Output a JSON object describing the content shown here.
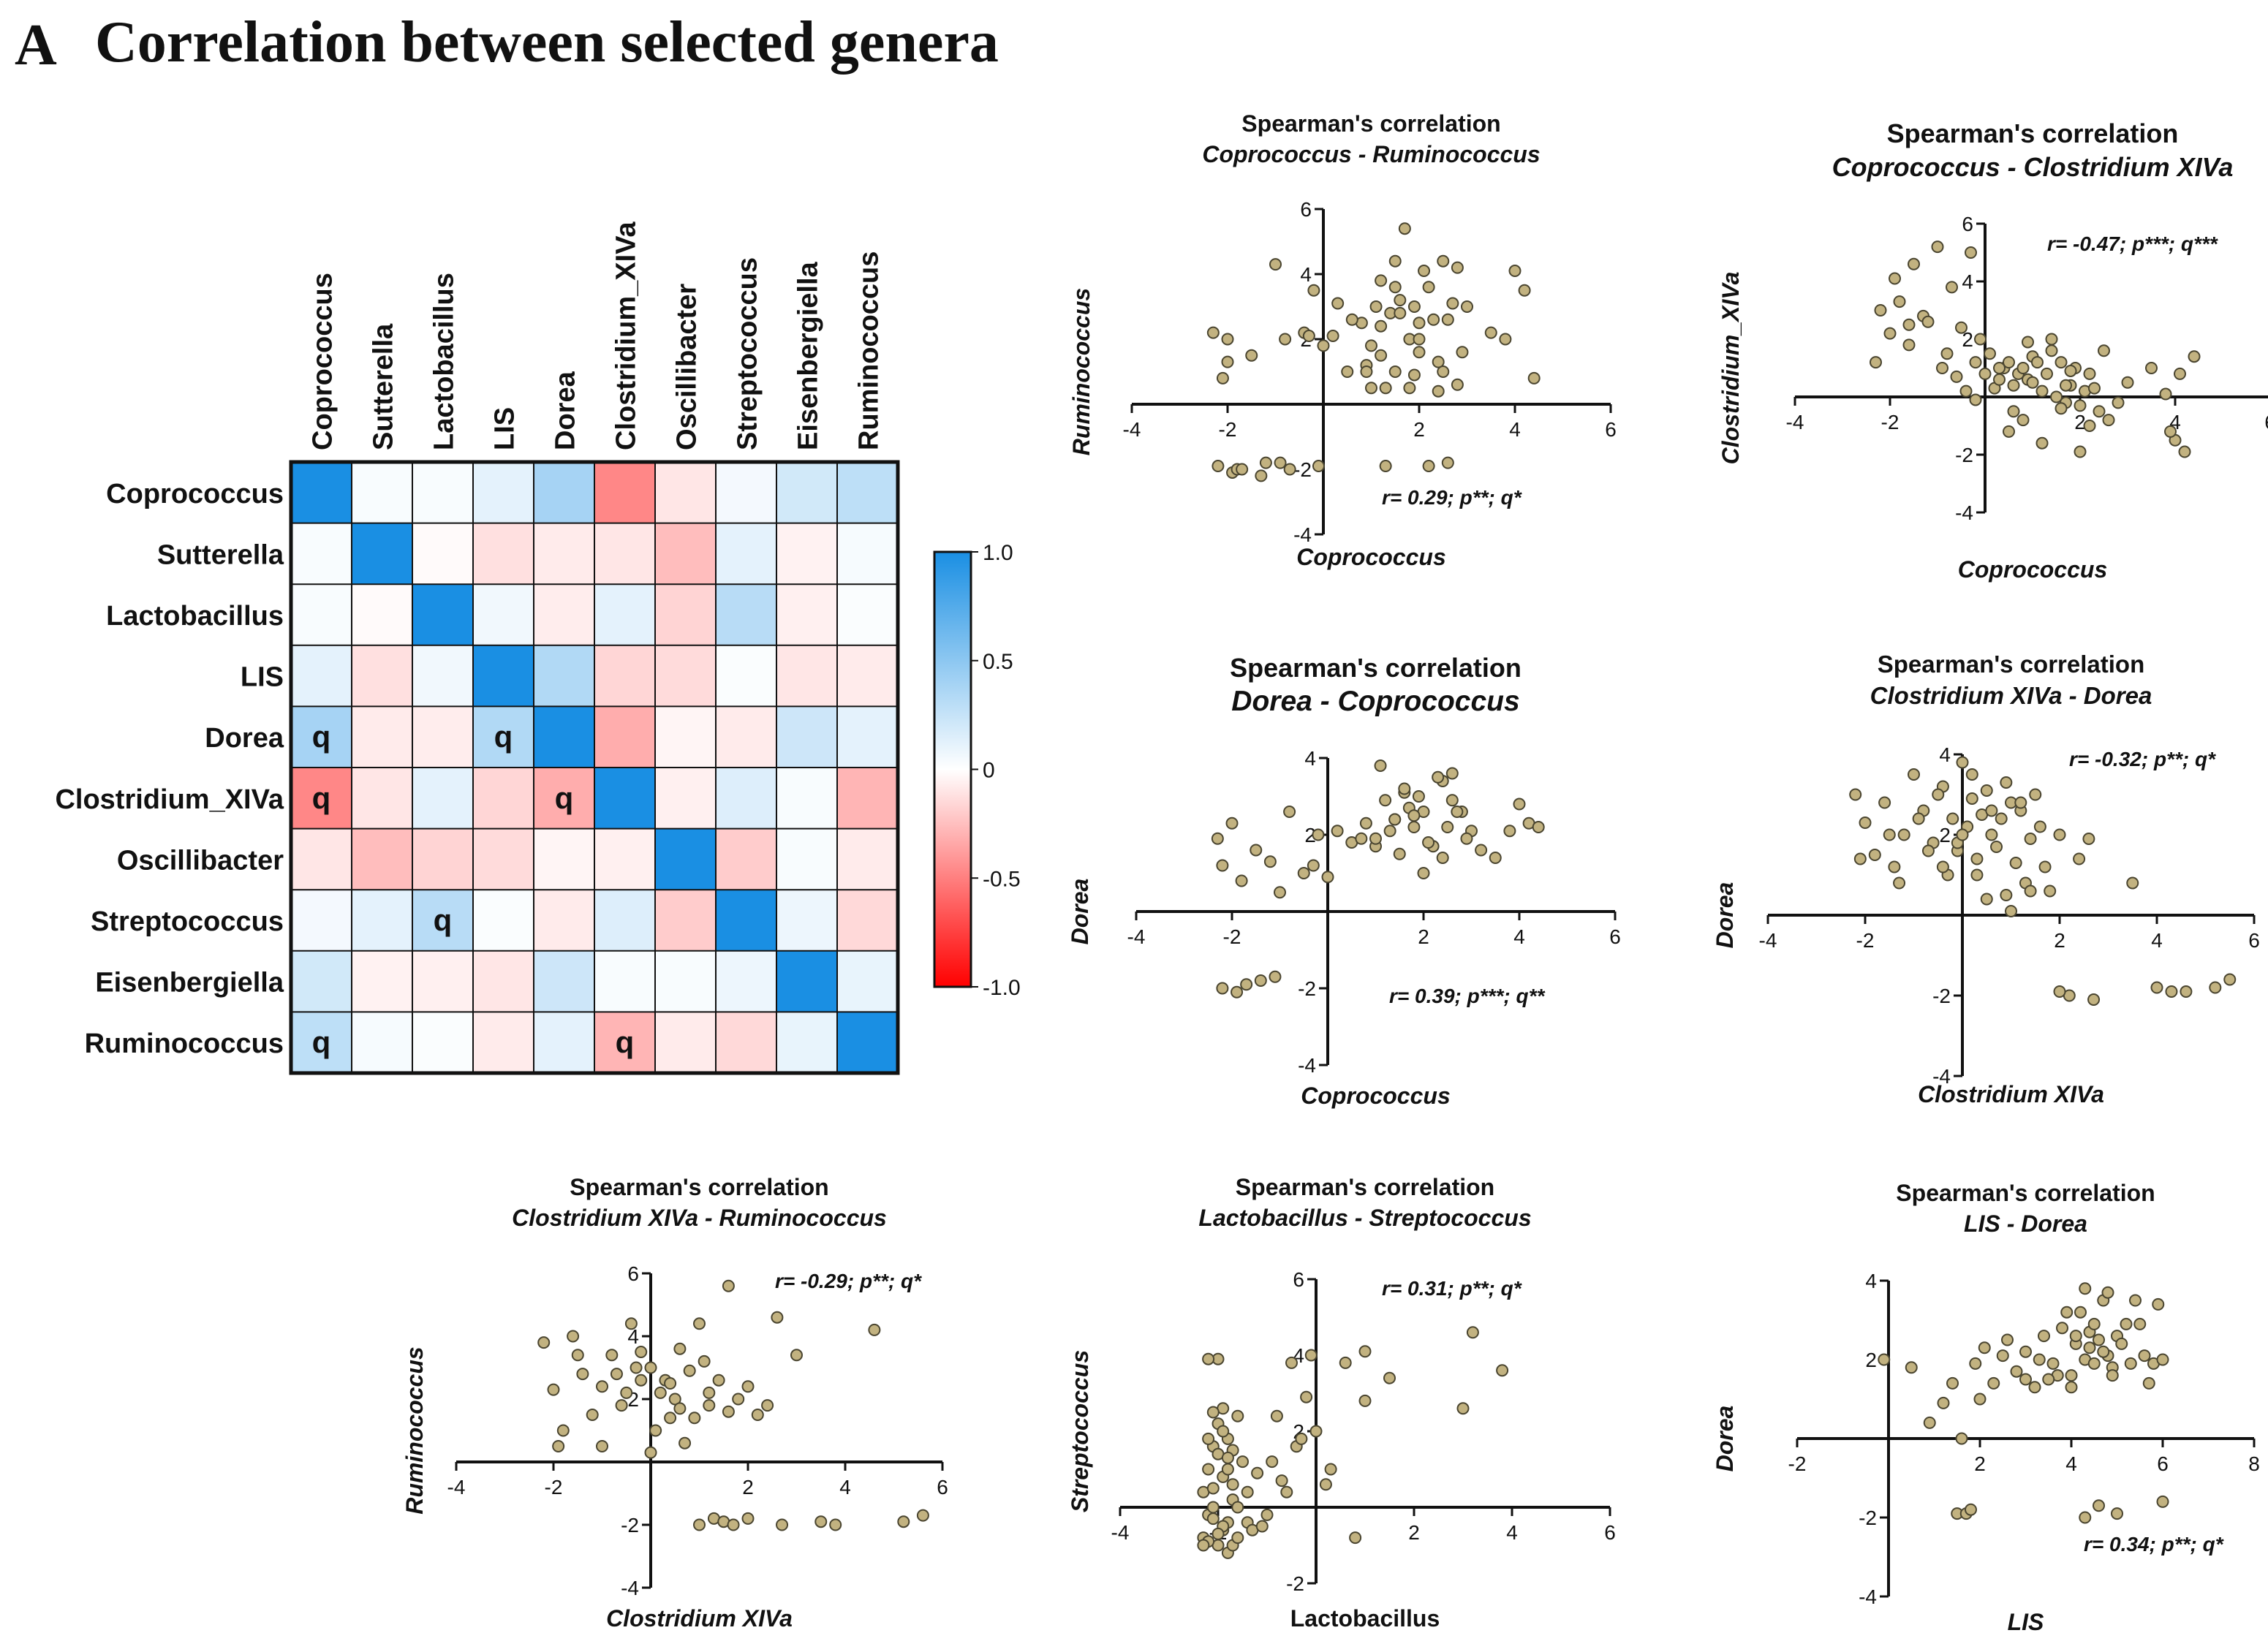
{
  "panel_label": "A",
  "panel_title": "Correlation between selected genera",
  "chart_data": [
    {
      "type": "heatmap",
      "title": "Correlation between selected genera",
      "rows": [
        "Coprococcus",
        "Sutterella",
        "Lactobacillus",
        "LIS",
        "Dorea",
        "Clostridium_XIVa",
        "Oscillibacter",
        "Streptococcus",
        "Eisenbergiella",
        "Ruminococcus"
      ],
      "columns": [
        "Coprococcus",
        "Sutterella",
        "Lactobacillus",
        "LIS",
        "Dorea",
        "Clostridium_XIVa",
        "Oscillibacter",
        "Streptococcus",
        "Eisenbergiella",
        "Ruminococcus"
      ],
      "values": [
        [
          1.0,
          0.03,
          0.03,
          0.12,
          0.39,
          -0.47,
          -0.1,
          0.05,
          0.2,
          0.29
        ],
        [
          0.03,
          1.0,
          -0.02,
          -0.12,
          -0.08,
          -0.1,
          -0.26,
          0.12,
          -0.05,
          0.04
        ],
        [
          0.03,
          -0.02,
          1.0,
          0.06,
          -0.07,
          0.12,
          -0.17,
          0.31,
          -0.06,
          0.02
        ],
        [
          0.12,
          -0.12,
          0.06,
          1.0,
          0.34,
          -0.16,
          -0.14,
          0.02,
          -0.1,
          -0.08
        ],
        [
          0.39,
          -0.08,
          -0.07,
          0.34,
          1.0,
          -0.32,
          -0.04,
          -0.08,
          0.22,
          0.12
        ],
        [
          -0.47,
          -0.1,
          0.12,
          -0.16,
          -0.32,
          1.0,
          -0.06,
          0.15,
          0.03,
          -0.29
        ],
        [
          -0.1,
          -0.26,
          -0.17,
          -0.14,
          -0.04,
          -0.06,
          1.0,
          -0.2,
          0.03,
          -0.08
        ],
        [
          0.05,
          0.12,
          0.31,
          0.02,
          -0.08,
          0.15,
          -0.2,
          1.0,
          0.08,
          -0.15
        ],
        [
          0.2,
          -0.05,
          -0.06,
          -0.1,
          0.22,
          0.03,
          0.03,
          0.08,
          1.0,
          0.1
        ],
        [
          0.29,
          0.04,
          0.02,
          -0.08,
          0.12,
          -0.29,
          -0.08,
          -0.15,
          0.1,
          1.0
        ]
      ],
      "markers": [
        {
          "row": 4,
          "col": 0,
          "text": "q"
        },
        {
          "row": 4,
          "col": 3,
          "text": "q"
        },
        {
          "row": 5,
          "col": 0,
          "text": "q"
        },
        {
          "row": 5,
          "col": 4,
          "text": "q"
        },
        {
          "row": 7,
          "col": 2,
          "text": "q"
        },
        {
          "row": 9,
          "col": 0,
          "text": "q"
        },
        {
          "row": 9,
          "col": 5,
          "text": "q"
        }
      ],
      "colorbar": {
        "range": [
          -1.0,
          1.0
        ],
        "ticks": [
          "1.0",
          "0.5",
          "0",
          "-0.5",
          "-1.0"
        ],
        "tick_values": [
          1.0,
          0.5,
          0,
          -0.5,
          -1.0
        ],
        "colors": {
          "positive": "#1a8fe3",
          "zero": "#ffffff",
          "negative": "#ff0000"
        }
      }
    },
    {
      "type": "scatter",
      "title_line1": "Spearman's correlation",
      "title_line2": "Coprococcus - Ruminococcus",
      "xlabel": "Coprococcus",
      "ylabel": "Ruminococcus",
      "xlim": [
        -4,
        6
      ],
      "ylim": [
        -4,
        6
      ],
      "xticks": [
        -4,
        -2,
        2,
        4,
        6
      ],
      "yticks": [
        -4,
        -2,
        2,
        4,
        6
      ],
      "annotation": "r= 0.29; p**; q*",
      "x": [
        -2.3,
        -2.1,
        -2.2,
        -1.9,
        -1.8,
        -2.0,
        -1.5,
        -1.0,
        -0.8,
        -1.2,
        -0.4,
        -0.2,
        -0.1,
        0.2,
        0.3,
        0.5,
        0.8,
        0.9,
        1.0,
        1.1,
        1.2,
        1.3,
        1.4,
        1.5,
        1.6,
        1.7,
        1.8,
        1.9,
        2.0,
        2.1,
        2.2,
        2.3,
        2.4,
        2.5,
        2.6,
        2.7,
        2.8,
        1.0,
        1.2,
        1.5,
        2.0,
        2.5,
        3.0,
        3.5,
        3.8,
        4.0,
        4.2,
        4.4,
        1.8,
        2.2,
        2.6,
        1.3,
        0.9,
        1.6,
        2.9,
        -2.0,
        -1.7,
        -1.3,
        -0.9,
        -0.7,
        0.0,
        1.9,
        2.4,
        1.2,
        0.6,
        -0.3,
        1.5,
        2.0,
        2.8
      ],
      "y": [
        2.2,
        0.8,
        -1.9,
        -2.1,
        -2.0,
        2.0,
        1.5,
        4.3,
        2.0,
        -1.8,
        2.2,
        3.5,
        -1.9,
        2.1,
        3.1,
        1.0,
        2.5,
        1.2,
        1.8,
        3.0,
        2.4,
        0.5,
        2.8,
        4.4,
        3.2,
        5.4,
        2.0,
        3.0,
        2.5,
        4.1,
        3.6,
        2.6,
        1.3,
        4.4,
        2.6,
        3.1,
        4.2,
        0.5,
        1.5,
        3.6,
        2.0,
        1.0,
        3.0,
        2.2,
        2.0,
        4.1,
        3.5,
        0.8,
        0.5,
        -1.9,
        -1.8,
        -1.9,
        1.0,
        2.8,
        1.6,
        1.3,
        -2.0,
        -2.2,
        -1.8,
        -2.0,
        1.8,
        0.9,
        0.4,
        3.8,
        2.6,
        2.1,
        1.0,
        1.6,
        0.6
      ]
    },
    {
      "type": "scatter",
      "title_line1": "Spearman's correlation",
      "title_line2": "Coprococcus - Clostridium XIVa",
      "xlabel": "Coprococcus",
      "ylabel": "Clostridium_XIVa",
      "xlim": [
        -4,
        6
      ],
      "ylim": [
        -4,
        6
      ],
      "xticks": [
        -4,
        -2,
        2,
        4,
        6
      ],
      "yticks": [
        -4,
        -2,
        2,
        4,
        6
      ],
      "annotation": "r= -0.47; p***; q***",
      "x": [
        -2.3,
        -2.2,
        -2.0,
        -1.9,
        -1.8,
        -1.6,
        -1.5,
        -1.3,
        -1.0,
        -0.9,
        -0.7,
        -0.5,
        -0.3,
        -0.2,
        -0.1,
        0.0,
        0.1,
        0.2,
        0.3,
        0.4,
        0.5,
        0.6,
        0.7,
        0.8,
        0.9,
        1.0,
        1.1,
        1.2,
        1.3,
        1.4,
        1.5,
        1.6,
        1.7,
        1.8,
        1.9,
        2.0,
        2.1,
        2.2,
        2.3,
        2.4,
        2.5,
        2.6,
        3.0,
        3.5,
        3.8,
        4.0,
        4.2,
        4.4,
        0.5,
        0.8,
        1.2,
        1.6,
        2.0,
        -0.4,
        -0.2,
        1.0,
        1.4,
        2.2,
        -1.6,
        -1.2,
        -0.8,
        0.3,
        0.6,
        1.8,
        2.8,
        -0.6,
        0.9,
        1.7,
        3.9,
        4.1
      ],
      "y": [
        1.2,
        3.0,
        2.2,
        4.1,
        3.3,
        2.5,
        4.6,
        2.8,
        5.2,
        1.0,
        3.8,
        2.4,
        5.0,
        1.2,
        2.0,
        0.8,
        1.5,
        0.3,
        0.6,
        1.0,
        1.2,
        0.4,
        0.8,
        1.0,
        0.6,
        1.4,
        1.2,
        0.2,
        0.8,
        1.6,
        0.0,
        1.2,
        -0.2,
        0.4,
        1.0,
        -0.3,
        0.2,
        -1.0,
        0.3,
        -0.5,
        1.6,
        -0.8,
        0.5,
        1.0,
        0.1,
        -1.5,
        -1.9,
        1.4,
        -1.2,
        -0.8,
        -1.6,
        -0.4,
        -1.9,
        0.2,
        -0.1,
        0.5,
        2.0,
        0.8,
        1.8,
        2.6,
        1.5,
        1.0,
        -0.5,
        0.9,
        -0.2,
        0.7,
        1.9,
        0.4,
        -1.2,
        0.8
      ]
    },
    {
      "type": "scatter",
      "title_line1": "Spearman's correlation",
      "title_line2": "Dorea - Coprococcus",
      "xlabel": "Coprococcus",
      "ylabel": "Dorea",
      "xlim": [
        -4,
        6
      ],
      "ylim": [
        -4,
        4
      ],
      "xticks": [
        -4,
        -2,
        2,
        4,
        6
      ],
      "yticks": [
        -4,
        -2,
        2,
        4
      ],
      "annotation": "r= 0.39; p***; q**",
      "x": [
        -2.3,
        -2.2,
        -2.0,
        -1.8,
        -1.5,
        -1.2,
        -1.0,
        -0.8,
        -0.5,
        -0.2,
        0.0,
        0.2,
        0.5,
        0.8,
        1.0,
        1.2,
        1.4,
        1.6,
        1.8,
        2.0,
        2.2,
        2.4,
        2.6,
        2.8,
        3.0,
        3.5,
        3.8,
        4.0,
        4.2,
        4.4,
        1.1,
        1.3,
        1.5,
        1.7,
        1.9,
        2.1,
        2.3,
        2.5,
        2.7,
        1.0,
        1.8,
        2.6,
        3.2,
        -1.9,
        -1.7,
        -2.2,
        -1.4,
        -1.1,
        1.4,
        2.0,
        2.9,
        1.6,
        2.4,
        0.7,
        -0.3
      ],
      "y": [
        1.9,
        1.2,
        2.3,
        0.8,
        1.6,
        1.3,
        0.5,
        2.6,
        1.0,
        2.0,
        0.9,
        2.1,
        1.8,
        2.3,
        1.7,
        2.9,
        2.4,
        3.1,
        2.2,
        2.6,
        1.7,
        3.4,
        2.9,
        2.6,
        2.1,
        1.4,
        2.1,
        2.8,
        2.3,
        2.2,
        3.8,
        2.1,
        1.5,
        2.7,
        3.0,
        1.8,
        3.5,
        2.2,
        2.6,
        1.9,
        2.5,
        3.6,
        1.6,
        -2.1,
        -1.9,
        -2.0,
        -1.8,
        -1.7,
        2.4,
        1.0,
        1.9,
        3.2,
        1.4,
        1.9,
        1.2
      ]
    },
    {
      "type": "scatter",
      "title_line1": "Spearman's correlation",
      "title_line2": "Clostridium XIVa - Dorea",
      "xlabel": "Clostridium XIVa",
      "ylabel": "Dorea",
      "xlim": [
        -4,
        6
      ],
      "ylim": [
        -4,
        4
      ],
      "xticks": [
        -4,
        -2,
        2,
        4,
        6
      ],
      "yticks": [
        -4,
        -2,
        2,
        4
      ],
      "annotation": "r= -0.32; p**; q*",
      "x": [
        -2.2,
        -2.0,
        -1.8,
        -1.6,
        -1.4,
        -1.2,
        -1.0,
        -0.8,
        -0.6,
        -0.4,
        -0.3,
        -0.2,
        -0.1,
        0.0,
        0.1,
        0.2,
        0.3,
        0.4,
        0.5,
        0.6,
        0.7,
        0.8,
        0.9,
        1.0,
        1.1,
        1.2,
        1.3,
        1.4,
        1.5,
        1.6,
        1.8,
        2.0,
        2.2,
        2.4,
        2.6,
        3.5,
        -0.7,
        -0.5,
        -1.5,
        -0.9,
        0.3,
        0.9,
        1.2,
        1.7,
        -0.1,
        2.0,
        2.7,
        4.0,
        4.3,
        4.6,
        5.2,
        5.5,
        -2.1,
        -1.3,
        0.5,
        1.0,
        0.0,
        0.6,
        -0.4,
        0.2,
        1.4
      ],
      "y": [
        3.0,
        2.3,
        1.5,
        2.8,
        1.2,
        2.0,
        3.5,
        2.6,
        1.8,
        3.2,
        1.0,
        2.4,
        1.6,
        3.8,
        2.2,
        2.9,
        1.4,
        2.5,
        3.1,
        2.0,
        1.7,
        2.4,
        3.3,
        2.8,
        1.3,
        2.6,
        0.8,
        1.9,
        3.0,
        2.2,
        0.6,
        2.0,
        -2.0,
        1.4,
        1.9,
        0.8,
        1.6,
        3.0,
        2.0,
        2.4,
        1.0,
        0.5,
        2.8,
        1.2,
        1.8,
        -1.9,
        -2.1,
        -1.8,
        -1.9,
        -1.9,
        -1.8,
        -1.6,
        1.4,
        0.8,
        0.4,
        0.1,
        2.0,
        2.6,
        1.2,
        3.5,
        0.6
      ]
    },
    {
      "type": "scatter",
      "title_line1": "Spearman's correlation",
      "title_line2": "Clostridium XIVa - Ruminococcus",
      "xlabel": "Clostridium XIVa",
      "ylabel": "Ruminococcus",
      "xlim": [
        -4,
        6
      ],
      "ylim": [
        -4,
        6
      ],
      "xticks": [
        -4,
        -2,
        2,
        4,
        6
      ],
      "yticks": [
        -4,
        -2,
        2,
        4,
        6
      ],
      "annotation": "r= -0.29; p**; q*",
      "x": [
        -2.2,
        -2.0,
        -1.8,
        -1.6,
        -1.4,
        -1.2,
        -1.0,
        -0.8,
        -0.6,
        -0.4,
        -0.2,
        0.0,
        0.2,
        0.4,
        0.6,
        0.8,
        1.0,
        1.2,
        1.4,
        1.6,
        1.8,
        2.0,
        2.2,
        2.6,
        3.0,
        3.5,
        3.8,
        4.6,
        5.2,
        5.6,
        -0.5,
        -0.3,
        0.1,
        0.3,
        0.5,
        0.7,
        0.9,
        1.1,
        1.3,
        1.5,
        1.7,
        2.4,
        -1.5,
        -1.0,
        -0.7,
        1.2,
        2.7,
        0.0,
        0.6,
        1.0,
        2.0,
        1.6,
        -0.2,
        0.4,
        -1.9
      ],
      "y": [
        3.8,
        2.3,
        1.0,
        4.0,
        2.8,
        1.5,
        2.4,
        3.4,
        1.8,
        4.4,
        2.6,
        3.0,
        2.2,
        1.4,
        3.6,
        2.9,
        4.4,
        1.8,
        2.6,
        5.6,
        2.0,
        2.4,
        1.5,
        4.6,
        3.4,
        -1.9,
        -2.0,
        4.2,
        -1.9,
        -1.7,
        2.2,
        3.0,
        1.0,
        2.6,
        2.0,
        0.6,
        1.4,
        3.2,
        -1.8,
        -1.9,
        -2.0,
        1.8,
        3.4,
        0.5,
        2.8,
        2.2,
        -2.0,
        0.3,
        1.7,
        -2.0,
        -1.8,
        1.6,
        3.5,
        2.5,
        0.5
      ]
    },
    {
      "type": "scatter",
      "title_line1": "Spearman's correlation",
      "title_line2": "Lactobacillus - Streptococcus",
      "xlabel": "Lactobacillus",
      "ylabel": "Streptococcus",
      "xlim": [
        -4,
        6
      ],
      "ylim": [
        -2,
        6
      ],
      "xticks": [
        -4,
        -2,
        2,
        4,
        6
      ],
      "yticks": [
        -2,
        2,
        4,
        6
      ],
      "annotation": "r= 0.31; p**; q*",
      "x": [
        -2.3,
        -2.2,
        -2.1,
        -2.0,
        -1.9,
        -1.8,
        -1.7,
        -1.6,
        -1.5,
        -2.2,
        -2.1,
        -2.0,
        -1.9,
        -1.8,
        -2.3,
        -2.1,
        -1.9,
        -1.7,
        -2.2,
        -2.0,
        -1.8,
        -1.6,
        -2.1,
        -1.9,
        -1.7,
        -2.0,
        -1.8,
        -2.2,
        -1.4,
        -1.2,
        -1.0,
        -0.8,
        -0.6,
        -0.4,
        -0.2,
        0.0,
        -1.3,
        -0.9,
        -0.5,
        -0.1,
        0.3,
        0.6,
        1.0,
        1.5,
        3.0,
        3.2,
        3.8,
        -2.3,
        -2.0,
        -1.7,
        -1.4,
        -1.1,
        -2.2,
        -1.9,
        -1.6,
        -0.7,
        -0.3,
        0.2,
        -2.1,
        -1.8,
        0.8,
        1.0
      ],
      "y": [
        0.4,
        1.0,
        1.6,
        2.2,
        0.8,
        1.8,
        0.2,
        2.4,
        1.2,
        -0.2,
        0.5,
        1.4,
        2.6,
        -0.4,
        -0.8,
        0.0,
        -0.6,
        0.6,
        1.8,
        -1.0,
        1.0,
        0.0,
        2.5,
        -0.5,
        1.5,
        3.9,
        -1.2,
        -0.9,
        -0.4,
        0.9,
        -0.2,
        2.4,
        0.4,
        1.6,
        2.9,
        2.0,
        -0.6,
        1.2,
        3.8,
        4.0,
        1.0,
        3.8,
        2.8,
        3.4,
        2.6,
        4.6,
        3.6,
        -1.0,
        -0.7,
        -1.0,
        0.4,
        -0.5,
        3.9,
        2.0,
        -0.8,
        0.7,
        1.8,
        0.6,
        -0.3,
        1.3,
        -0.8,
        4.1
      ]
    },
    {
      "type": "scatter",
      "title_line1": "Spearman's correlation",
      "title_line2": "LIS - Dorea",
      "xlabel": "LIS",
      "ylabel": "Dorea",
      "xlim": [
        -2,
        8
      ],
      "ylim": [
        -4,
        4
      ],
      "xticks": [
        -2,
        2,
        4,
        6,
        8
      ],
      "yticks": [
        -4,
        -2,
        2,
        4
      ],
      "annotation": "r= 0.34; p**; q*",
      "x": [
        -0.1,
        0.5,
        0.9,
        1.2,
        1.4,
        1.6,
        1.9,
        2.1,
        2.3,
        2.5,
        2.8,
        3.0,
        3.2,
        3.4,
        3.6,
        3.8,
        4.0,
        4.1,
        4.2,
        4.3,
        4.4,
        4.5,
        4.6,
        4.7,
        4.8,
        4.9,
        5.0,
        5.2,
        5.4,
        5.6,
        5.8,
        6.0,
        3.9,
        4.1,
        4.3,
        4.5,
        4.7,
        3.7,
        4.0,
        4.4,
        4.8,
        5.1,
        5.5,
        5.9,
        3.3,
        3.5,
        2.0,
        2.6,
        1.5,
        1.7,
        1.8,
        4.6,
        5.0,
        5.3,
        6.0,
        4.3,
        4.9,
        5.7,
        3.0
      ],
      "y": [
        2.0,
        1.8,
        0.4,
        0.9,
        1.4,
        0.0,
        1.9,
        2.3,
        1.4,
        2.1,
        1.7,
        2.2,
        1.3,
        2.6,
        1.9,
        2.8,
        1.6,
        2.4,
        3.2,
        2.0,
        2.7,
        1.9,
        2.5,
        3.5,
        2.1,
        1.8,
        2.6,
        2.9,
        3.5,
        2.1,
        1.9,
        2.0,
        3.2,
        2.6,
        3.8,
        2.9,
        2.2,
        1.6,
        1.3,
        2.3,
        3.7,
        2.4,
        2.9,
        3.4,
        2.0,
        1.5,
        1.0,
        2.5,
        -1.9,
        -1.9,
        -1.8,
        -1.7,
        -1.9,
        1.9,
        -1.6,
        -2.0,
        1.6,
        1.4,
        1.5
      ]
    }
  ]
}
